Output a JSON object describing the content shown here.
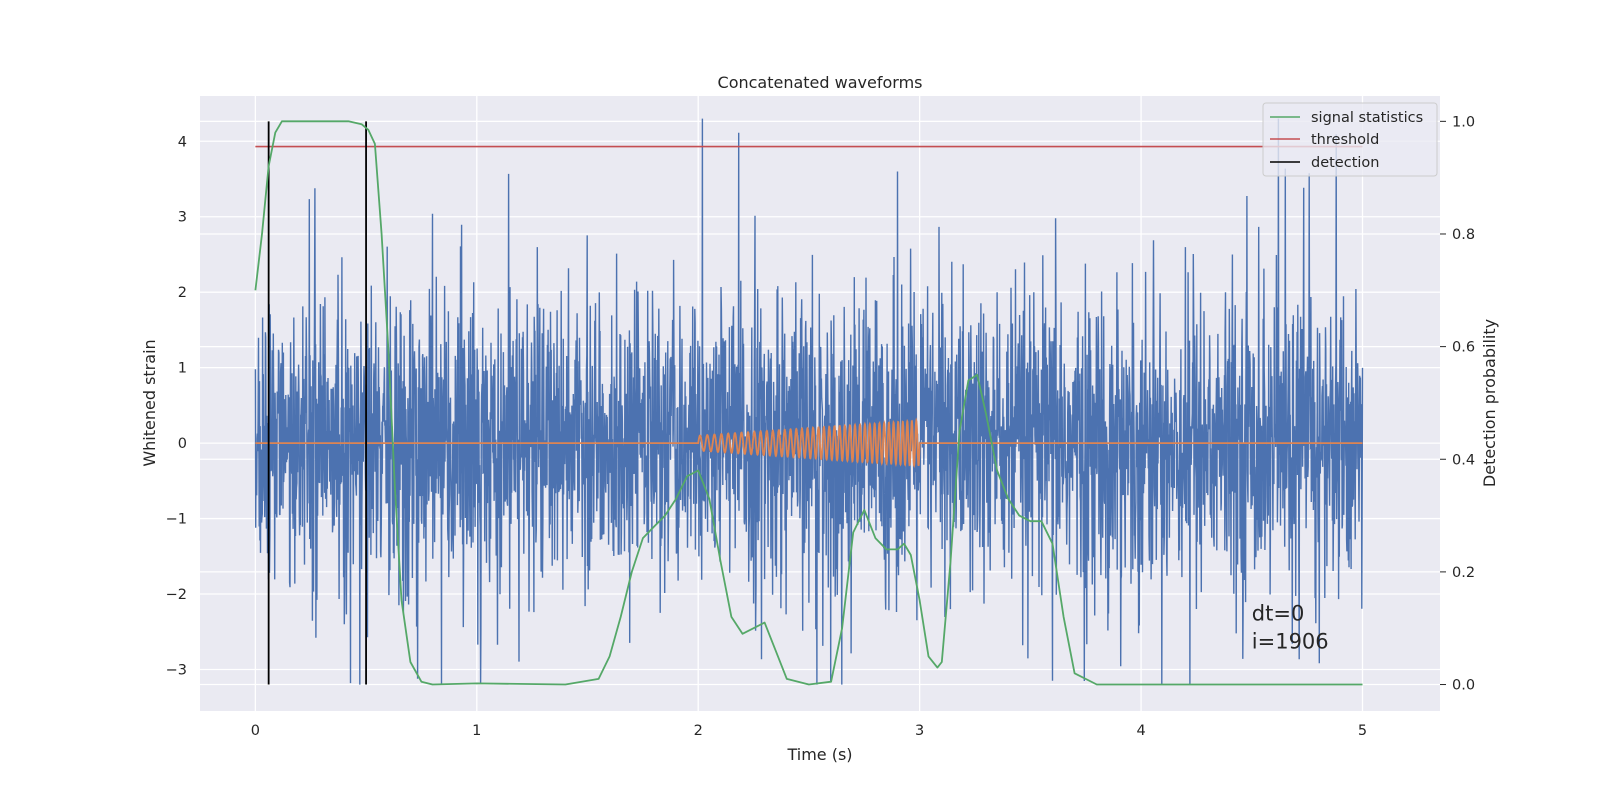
{
  "chart_data": {
    "type": "line",
    "title": "Concatenated waveforms",
    "xlabel": "Time (s)",
    "ylabel": "Whitened strain",
    "y2label": "Detection probability",
    "xlim": [
      -0.25,
      5.35
    ],
    "ylim": [
      -3.55,
      4.6
    ],
    "y2lim": [
      -0.047,
      1.045
    ],
    "xticks": [
      0,
      1,
      2,
      3,
      4,
      5
    ],
    "yticks": [
      -3,
      -2,
      -1,
      0,
      1,
      2,
      3,
      4
    ],
    "y2ticks": [
      0.0,
      0.2,
      0.4,
      0.6,
      0.8,
      1.0
    ],
    "xtick_labels": [
      "0",
      "1",
      "2",
      "3",
      "4",
      "5"
    ],
    "ytick_labels": [
      "−3",
      "−2",
      "−1",
      "0",
      "1",
      "2",
      "3",
      "4"
    ],
    "y2tick_labels": [
      "0.0",
      "0.2",
      "0.4",
      "0.6",
      "0.8",
      "1.0"
    ],
    "grid": true,
    "legend_position": "top-right",
    "series": [
      {
        "name": "",
        "axis": "left",
        "color": "#4c72b0",
        "kind": "noise",
        "x_range": [
          0,
          5
        ],
        "amplitude_range": [
          -3.2,
          4.3
        ],
        "notable_peaks": [
          [
            4.62,
            4.3
          ],
          [
            2.9,
            3.6
          ],
          [
            4.22,
            -3.2
          ],
          [
            3.6,
            -3.15
          ]
        ]
      },
      {
        "name": "",
        "axis": "left",
        "color": "#dd8452",
        "kind": "chirp",
        "x": [
          0,
          2,
          2.5,
          3,
          5
        ],
        "envelope": [
          0,
          0.1,
          0.2,
          0.3,
          0
        ],
        "chirp_interval": [
          2,
          3
        ]
      },
      {
        "name": "signal statistics",
        "axis": "right",
        "color": "#55a868",
        "x": [
          0.0,
          0.03,
          0.06,
          0.09,
          0.12,
          0.18,
          0.3,
          0.42,
          0.48,
          0.51,
          0.54,
          0.57,
          0.6,
          0.63,
          0.66,
          0.7,
          0.75,
          0.8,
          1.0,
          1.4,
          1.55,
          1.6,
          1.65,
          1.7,
          1.75,
          1.8,
          1.85,
          1.9,
          1.95,
          2.0,
          2.05,
          2.1,
          2.15,
          2.2,
          2.25,
          2.3,
          2.35,
          2.4,
          2.5,
          2.6,
          2.65,
          2.7,
          2.75,
          2.8,
          2.85,
          2.9,
          2.93,
          2.96,
          3.0,
          3.04,
          3.08,
          3.1,
          3.14,
          3.18,
          3.22,
          3.26,
          3.3,
          3.35,
          3.4,
          3.45,
          3.5,
          3.55,
          3.6,
          3.65,
          3.7,
          3.8,
          4.5,
          5.0
        ],
        "y": [
          0.7,
          0.8,
          0.92,
          0.98,
          1.0,
          1.0,
          1.0,
          1.0,
          0.995,
          0.985,
          0.96,
          0.8,
          0.6,
          0.35,
          0.15,
          0.04,
          0.005,
          0.0,
          0.002,
          0.0,
          0.01,
          0.05,
          0.12,
          0.2,
          0.26,
          0.28,
          0.3,
          0.33,
          0.37,
          0.38,
          0.33,
          0.22,
          0.12,
          0.09,
          0.1,
          0.11,
          0.06,
          0.01,
          0.0,
          0.005,
          0.1,
          0.27,
          0.31,
          0.26,
          0.24,
          0.24,
          0.25,
          0.23,
          0.15,
          0.05,
          0.03,
          0.04,
          0.22,
          0.45,
          0.54,
          0.55,
          0.48,
          0.38,
          0.33,
          0.3,
          0.29,
          0.29,
          0.25,
          0.12,
          0.02,
          0.0,
          0.0,
          0.0
        ]
      },
      {
        "name": "threshold",
        "axis": "left",
        "color": "#c44e52",
        "x": [
          0,
          5
        ],
        "y": [
          3.93,
          3.93
        ]
      },
      {
        "name": "detection",
        "axis": "right",
        "color": "#000000",
        "vlines": [
          0.06,
          0.5
        ],
        "ymin": 0.0,
        "ymax": 1.0
      }
    ],
    "annotations": [
      {
        "text": "dt=0",
        "x": 4.5,
        "y": -2.35
      },
      {
        "text": "i=1906",
        "x": 4.5,
        "y": -2.72
      }
    ]
  }
}
